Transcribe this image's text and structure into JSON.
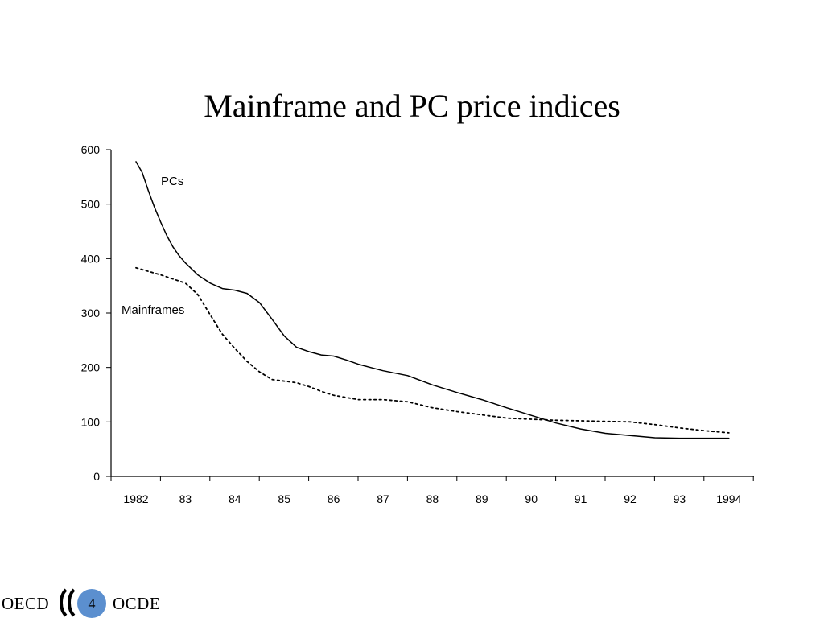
{
  "slide": {
    "title": "Mainframe and PC price indices"
  },
  "chart_data": {
    "type": "line",
    "title": "Mainframe and PC price indices",
    "xlabel": "",
    "ylabel": "",
    "xlim": [
      1982,
      1994
    ],
    "ylim": [
      0,
      600
    ],
    "y_ticks": [
      0,
      100,
      200,
      300,
      400,
      500,
      600
    ],
    "x_tick_labels": [
      "1982",
      "83",
      "84",
      "85",
      "86",
      "87",
      "88",
      "89",
      "90",
      "91",
      "92",
      "93",
      "1994"
    ],
    "grid": false,
    "legend": "inline labels",
    "series": [
      {
        "name": "PCs",
        "style": "solid",
        "color": "#000000",
        "x": [
          1982.0,
          1982.125,
          1982.25,
          1982.375,
          1982.5,
          1982.625,
          1982.75,
          1982.875,
          1983.0,
          1983.25,
          1983.5,
          1983.75,
          1984.0,
          1984.25,
          1984.5,
          1984.75,
          1985.0,
          1985.25,
          1985.5,
          1985.75,
          1986.0,
          1986.25,
          1986.5,
          1986.75,
          1987.0,
          1987.5,
          1988.0,
          1988.5,
          1989.0,
          1989.5,
          1990.0,
          1990.5,
          1991.0,
          1991.5,
          1992.0,
          1992.5,
          1993.0,
          1993.5,
          1994.0
        ],
        "values": [
          578,
          558,
          525,
          494,
          467,
          442,
          421,
          405,
          392,
          370,
          355,
          345,
          342,
          336,
          319,
          289,
          258,
          237,
          229,
          223,
          221,
          214,
          206,
          200,
          194,
          185,
          168,
          154,
          141,
          126,
          112,
          98,
          87,
          79,
          75,
          71,
          70,
          70,
          70
        ]
      },
      {
        "name": "Mainframes",
        "style": "dotted",
        "color": "#000000",
        "x": [
          1982.0,
          1982.5,
          1983.0,
          1983.25,
          1983.5,
          1983.75,
          1984.0,
          1984.25,
          1984.5,
          1984.75,
          1985.0,
          1985.25,
          1985.5,
          1985.75,
          1986.0,
          1986.25,
          1986.5,
          1987.0,
          1987.5,
          1988.0,
          1988.5,
          1989.0,
          1989.5,
          1990.0,
          1990.5,
          1991.0,
          1991.5,
          1992.0,
          1992.5,
          1993.0,
          1993.5,
          1994.0
        ],
        "values": [
          383,
          370,
          355,
          334,
          297,
          261,
          235,
          211,
          192,
          178,
          175,
          172,
          165,
          156,
          149,
          145,
          141,
          141,
          137,
          126,
          119,
          113,
          107,
          105,
          103,
          102,
          101,
          100,
          95,
          89,
          84,
          80
        ]
      }
    ],
    "annotations": [
      "PCs",
      "Mainframes"
    ]
  },
  "footer": {
    "org_left": "OECD",
    "org_right": "OCDE",
    "page_number": "4"
  },
  "colors": {
    "badge": "#5b8fcf",
    "line": "#000000"
  }
}
